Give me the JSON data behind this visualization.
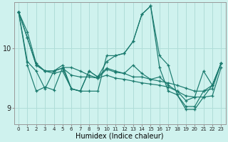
{
  "xlabel": "Humidex (Indice chaleur)",
  "background_color": "#cff2ee",
  "grid_color": "#b0ddd8",
  "line_color": "#1a7a6e",
  "xlim": [
    -0.5,
    23.5
  ],
  "ylim": [
    8.72,
    10.78
  ],
  "yticks": [
    9,
    10
  ],
  "xticks": [
    0,
    1,
    2,
    3,
    4,
    5,
    6,
    7,
    8,
    9,
    10,
    11,
    12,
    13,
    14,
    15,
    16,
    17,
    18,
    19,
    20,
    21,
    22,
    23
  ],
  "series": [
    [
      10.62,
      10.28,
      9.75,
      9.62,
      9.62,
      9.67,
      9.55,
      9.52,
      9.52,
      9.5,
      9.65,
      9.6,
      9.58,
      9.52,
      9.52,
      9.48,
      9.45,
      9.42,
      9.38,
      9.33,
      9.28,
      9.28,
      9.32,
      9.75
    ],
    [
      10.62,
      9.78,
      9.62,
      9.32,
      9.62,
      9.67,
      9.32,
      9.28,
      9.62,
      9.52,
      9.67,
      9.62,
      9.58,
      9.72,
      9.58,
      9.48,
      9.52,
      9.38,
      9.28,
      9.12,
      9.18,
      9.62,
      9.38,
      9.75
    ],
    [
      10.62,
      10.18,
      9.72,
      9.62,
      9.58,
      9.62,
      9.32,
      9.28,
      9.62,
      9.52,
      9.78,
      9.88,
      9.92,
      10.12,
      10.58,
      10.72,
      9.88,
      9.72,
      9.22,
      8.97,
      8.97,
      9.18,
      9.38,
      9.75
    ],
    [
      10.62,
      10.18,
      9.72,
      9.62,
      9.62,
      9.72,
      9.32,
      9.28,
      9.28,
      9.28,
      9.88,
      9.88,
      9.92,
      10.12,
      10.58,
      10.72,
      9.68,
      9.28,
      9.22,
      9.02,
      9.02,
      9.28,
      9.38,
      9.75
    ],
    [
      10.62,
      9.72,
      9.28,
      9.35,
      9.3,
      9.68,
      9.68,
      9.62,
      9.55,
      9.5,
      9.55,
      9.5,
      9.48,
      9.45,
      9.42,
      9.4,
      9.38,
      9.35,
      9.28,
      9.2,
      9.18,
      9.18,
      9.2,
      9.68
    ]
  ]
}
